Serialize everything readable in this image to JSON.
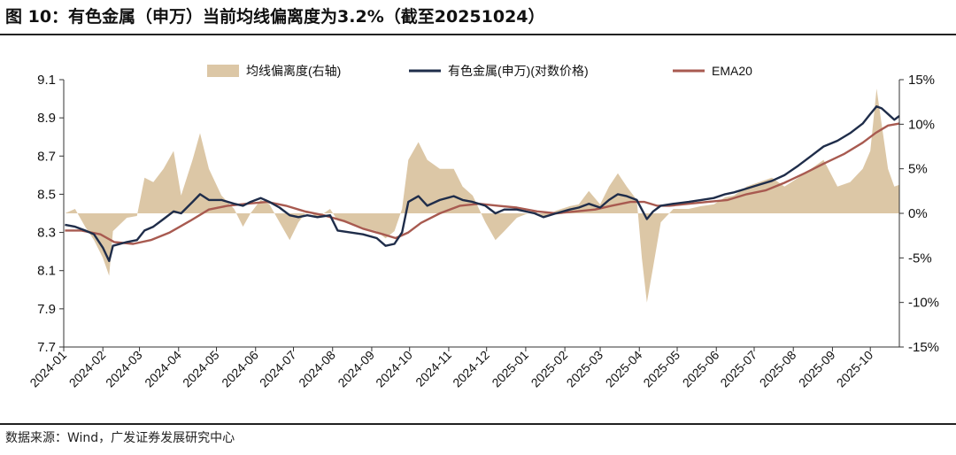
{
  "figure": {
    "title": "图 10：有色金属（申万）当前均线偏离度为3.2%（截至20251024）",
    "source": "数据来源：Wind，广发证券发展研究中心"
  },
  "colors": {
    "deviation": "#dcc7a6",
    "index": "#1f2d4a",
    "ema": "#a85a50"
  },
  "chart_data": {
    "type": "line",
    "x_tick_labels": [
      "2024-01",
      "2024-02",
      "2024-03",
      "2024-04",
      "2024-05",
      "2024-06",
      "2024-07",
      "2024-08",
      "2024-09",
      "2024-10",
      "2024-11",
      "2024-12",
      "2025-01",
      "2025-02",
      "2025-03",
      "2025-04",
      "2025-05",
      "2025-06",
      "2025-07",
      "2025-08",
      "2025-09",
      "2025-10"
    ],
    "x_range": [
      "2024-01-01",
      "2025-10-24"
    ],
    "y_left": {
      "range": [
        7.7,
        9.1
      ],
      "ticks": [
        "9.1",
        "8.9",
        "8.7",
        "8.5",
        "8.3",
        "8.1",
        "7.9",
        "7.7"
      ]
    },
    "y_right": {
      "range": [
        -15,
        15
      ],
      "ticks": [
        "15%",
        "10%",
        "5%",
        "0%",
        "-5%",
        "-10%",
        "-15%"
      ]
    },
    "grid": false,
    "legend_position": "top",
    "series": [
      {
        "name": "均线偏离度(右轴)",
        "type": "area",
        "axis": "right",
        "points": [
          [
            "2024-01-02",
            0
          ],
          [
            "2024-01-10",
            0.5
          ],
          [
            "2024-01-18",
            -1.5
          ],
          [
            "2024-01-25",
            -3
          ],
          [
            "2024-02-01",
            -5
          ],
          [
            "2024-02-06",
            -7
          ],
          [
            "2024-02-09",
            -2
          ],
          [
            "2024-02-20",
            -0.5
          ],
          [
            "2024-02-28",
            -0.3
          ],
          [
            "2024-03-05",
            4
          ],
          [
            "2024-03-12",
            3.5
          ],
          [
            "2024-03-20",
            5
          ],
          [
            "2024-03-28",
            7
          ],
          [
            "2024-04-03",
            2
          ],
          [
            "2024-04-12",
            6
          ],
          [
            "2024-04-18",
            9
          ],
          [
            "2024-04-25",
            5
          ],
          [
            "2024-05-05",
            2
          ],
          [
            "2024-05-15",
            0.5
          ],
          [
            "2024-05-22",
            -1.5
          ],
          [
            "2024-05-28",
            0
          ],
          [
            "2024-06-05",
            1.5
          ],
          [
            "2024-06-12",
            1
          ],
          [
            "2024-06-20",
            -1
          ],
          [
            "2024-06-28",
            -3
          ],
          [
            "2024-07-05",
            -1
          ],
          [
            "2024-07-12",
            0.3
          ],
          [
            "2024-07-20",
            -0.5
          ],
          [
            "2024-07-30",
            0.5
          ],
          [
            "2024-08-05",
            -0.8
          ],
          [
            "2024-08-15",
            -1.2
          ],
          [
            "2024-08-25",
            -1.6
          ],
          [
            "2024-09-05",
            -2
          ],
          [
            "2024-09-12",
            -2.8
          ],
          [
            "2024-09-19",
            -2
          ],
          [
            "2024-09-25",
            0.5
          ],
          [
            "2024-09-30",
            6
          ],
          [
            "2024-10-08",
            8
          ],
          [
            "2024-10-15",
            6
          ],
          [
            "2024-10-25",
            5
          ],
          [
            "2024-11-05",
            5
          ],
          [
            "2024-11-12",
            3
          ],
          [
            "2024-11-20",
            2
          ],
          [
            "2024-11-30",
            -1
          ],
          [
            "2024-12-08",
            -3
          ],
          [
            "2024-12-15",
            -2
          ],
          [
            "2024-12-25",
            -0.5
          ],
          [
            "2025-01-08",
            0.3
          ],
          [
            "2025-01-15",
            -0.5
          ],
          [
            "2025-01-25",
            0.3
          ],
          [
            "2025-02-05",
            0.8
          ],
          [
            "2025-02-12",
            1
          ],
          [
            "2025-02-20",
            2.5
          ],
          [
            "2025-03-01",
            1
          ],
          [
            "2025-03-08",
            3
          ],
          [
            "2025-03-15",
            4.5
          ],
          [
            "2025-03-22",
            3
          ],
          [
            "2025-03-30",
            1.5
          ],
          [
            "2025-04-03",
            -5
          ],
          [
            "2025-04-07",
            -10
          ],
          [
            "2025-04-12",
            -6
          ],
          [
            "2025-04-18",
            -1
          ],
          [
            "2025-04-28",
            0.5
          ],
          [
            "2025-05-10",
            0.5
          ],
          [
            "2025-05-20",
            0.8
          ],
          [
            "2025-05-30",
            1
          ],
          [
            "2025-06-08",
            1.8
          ],
          [
            "2025-06-15",
            2
          ],
          [
            "2025-06-25",
            3
          ],
          [
            "2025-07-05",
            3.5
          ],
          [
            "2025-07-15",
            4
          ],
          [
            "2025-07-25",
            3
          ],
          [
            "2025-08-05",
            4
          ],
          [
            "2025-08-15",
            5
          ],
          [
            "2025-08-25",
            6
          ],
          [
            "2025-09-05",
            3
          ],
          [
            "2025-09-15",
            3.5
          ],
          [
            "2025-09-25",
            5
          ],
          [
            "2025-10-01",
            7
          ],
          [
            "2025-10-06",
            14
          ],
          [
            "2025-10-10",
            10
          ],
          [
            "2025-10-15",
            5
          ],
          [
            "2025-10-20",
            3
          ],
          [
            "2025-10-24",
            3.2
          ]
        ]
      },
      {
        "name": "有色金属(申万)(对数价格)",
        "type": "line",
        "axis": "left",
        "points": [
          [
            "2024-01-02",
            8.34
          ],
          [
            "2024-01-10",
            8.33
          ],
          [
            "2024-01-18",
            8.31
          ],
          [
            "2024-01-25",
            8.29
          ],
          [
            "2024-02-01",
            8.22
          ],
          [
            "2024-02-06",
            8.15
          ],
          [
            "2024-02-09",
            8.23
          ],
          [
            "2024-02-20",
            8.25
          ],
          [
            "2024-02-28",
            8.26
          ],
          [
            "2024-03-05",
            8.31
          ],
          [
            "2024-03-12",
            8.33
          ],
          [
            "2024-03-20",
            8.37
          ],
          [
            "2024-03-28",
            8.41
          ],
          [
            "2024-04-03",
            8.4
          ],
          [
            "2024-04-12",
            8.46
          ],
          [
            "2024-04-18",
            8.5
          ],
          [
            "2024-04-25",
            8.47
          ],
          [
            "2024-05-05",
            8.47
          ],
          [
            "2024-05-15",
            8.45
          ],
          [
            "2024-05-22",
            8.44
          ],
          [
            "2024-05-28",
            8.46
          ],
          [
            "2024-06-05",
            8.48
          ],
          [
            "2024-06-12",
            8.46
          ],
          [
            "2024-06-20",
            8.43
          ],
          [
            "2024-06-28",
            8.39
          ],
          [
            "2024-07-05",
            8.38
          ],
          [
            "2024-07-12",
            8.39
          ],
          [
            "2024-07-20",
            8.38
          ],
          [
            "2024-07-30",
            8.39
          ],
          [
            "2024-08-05",
            8.31
          ],
          [
            "2024-08-15",
            8.3
          ],
          [
            "2024-08-25",
            8.29
          ],
          [
            "2024-09-05",
            8.27
          ],
          [
            "2024-09-12",
            8.23
          ],
          [
            "2024-09-19",
            8.24
          ],
          [
            "2024-09-25",
            8.3
          ],
          [
            "2024-09-30",
            8.46
          ],
          [
            "2024-10-08",
            8.49
          ],
          [
            "2024-10-15",
            8.44
          ],
          [
            "2024-10-25",
            8.47
          ],
          [
            "2024-11-05",
            8.49
          ],
          [
            "2024-11-12",
            8.47
          ],
          [
            "2024-11-20",
            8.46
          ],
          [
            "2024-11-30",
            8.44
          ],
          [
            "2024-12-08",
            8.4
          ],
          [
            "2024-12-15",
            8.42
          ],
          [
            "2024-12-25",
            8.42
          ],
          [
            "2025-01-08",
            8.4
          ],
          [
            "2025-01-15",
            8.38
          ],
          [
            "2025-01-25",
            8.4
          ],
          [
            "2025-02-05",
            8.42
          ],
          [
            "2025-02-12",
            8.43
          ],
          [
            "2025-02-20",
            8.45
          ],
          [
            "2025-03-01",
            8.43
          ],
          [
            "2025-03-08",
            8.47
          ],
          [
            "2025-03-15",
            8.5
          ],
          [
            "2025-03-22",
            8.49
          ],
          [
            "2025-03-30",
            8.47
          ],
          [
            "2025-04-03",
            8.42
          ],
          [
            "2025-04-07",
            8.37
          ],
          [
            "2025-04-12",
            8.41
          ],
          [
            "2025-04-18",
            8.44
          ],
          [
            "2025-04-28",
            8.45
          ],
          [
            "2025-05-10",
            8.46
          ],
          [
            "2025-05-20",
            8.47
          ],
          [
            "2025-05-30",
            8.48
          ],
          [
            "2025-06-08",
            8.5
          ],
          [
            "2025-06-15",
            8.51
          ],
          [
            "2025-06-25",
            8.53
          ],
          [
            "2025-07-05",
            8.55
          ],
          [
            "2025-07-15",
            8.57
          ],
          [
            "2025-07-25",
            8.6
          ],
          [
            "2025-08-05",
            8.65
          ],
          [
            "2025-08-15",
            8.7
          ],
          [
            "2025-08-25",
            8.75
          ],
          [
            "2025-09-05",
            8.78
          ],
          [
            "2025-09-15",
            8.82
          ],
          [
            "2025-09-25",
            8.87
          ],
          [
            "2025-10-01",
            8.92
          ],
          [
            "2025-10-06",
            8.96
          ],
          [
            "2025-10-10",
            8.95
          ],
          [
            "2025-10-15",
            8.92
          ],
          [
            "2025-10-20",
            8.89
          ],
          [
            "2025-10-24",
            8.91
          ]
        ]
      },
      {
        "name": "EMA20",
        "type": "line",
        "axis": "left",
        "points": [
          [
            "2024-01-02",
            8.31
          ],
          [
            "2024-01-15",
            8.31
          ],
          [
            "2024-01-30",
            8.29
          ],
          [
            "2024-02-10",
            8.25
          ],
          [
            "2024-02-25",
            8.24
          ],
          [
            "2024-03-10",
            8.26
          ],
          [
            "2024-03-25",
            8.3
          ],
          [
            "2024-04-10",
            8.36
          ],
          [
            "2024-04-25",
            8.42
          ],
          [
            "2024-05-10",
            8.44
          ],
          [
            "2024-05-25",
            8.45
          ],
          [
            "2024-06-10",
            8.46
          ],
          [
            "2024-06-25",
            8.44
          ],
          [
            "2024-07-10",
            8.41
          ],
          [
            "2024-07-25",
            8.39
          ],
          [
            "2024-08-10",
            8.36
          ],
          [
            "2024-08-25",
            8.32
          ],
          [
            "2024-09-10",
            8.29
          ],
          [
            "2024-09-20",
            8.27
          ],
          [
            "2024-09-30",
            8.3
          ],
          [
            "2024-10-10",
            8.35
          ],
          [
            "2024-10-25",
            8.4
          ],
          [
            "2024-11-10",
            8.44
          ],
          [
            "2024-11-25",
            8.45
          ],
          [
            "2024-12-10",
            8.44
          ],
          [
            "2024-12-25",
            8.43
          ],
          [
            "2025-01-10",
            8.41
          ],
          [
            "2025-01-25",
            8.4
          ],
          [
            "2025-02-10",
            8.41
          ],
          [
            "2025-02-25",
            8.42
          ],
          [
            "2025-03-10",
            8.44
          ],
          [
            "2025-03-25",
            8.46
          ],
          [
            "2025-04-05",
            8.46
          ],
          [
            "2025-04-15",
            8.44
          ],
          [
            "2025-04-25",
            8.44
          ],
          [
            "2025-05-10",
            8.45
          ],
          [
            "2025-05-25",
            8.46
          ],
          [
            "2025-06-10",
            8.47
          ],
          [
            "2025-06-25",
            8.5
          ],
          [
            "2025-07-10",
            8.52
          ],
          [
            "2025-07-25",
            8.56
          ],
          [
            "2025-08-10",
            8.61
          ],
          [
            "2025-08-25",
            8.66
          ],
          [
            "2025-09-10",
            8.71
          ],
          [
            "2025-09-25",
            8.77
          ],
          [
            "2025-10-05",
            8.82
          ],
          [
            "2025-10-15",
            8.86
          ],
          [
            "2025-10-24",
            8.87
          ]
        ]
      }
    ]
  }
}
